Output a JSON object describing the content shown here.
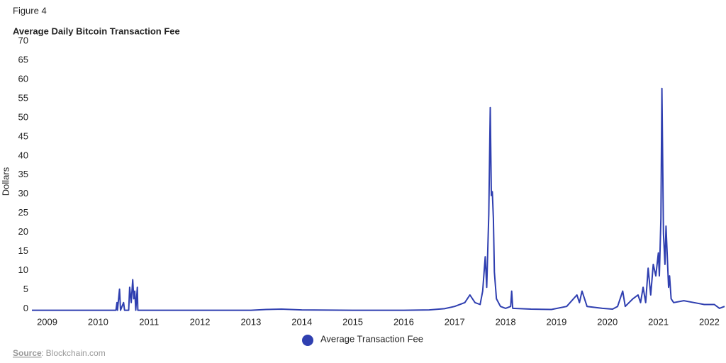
{
  "chart_data": {
    "type": "line",
    "figure_label": "Figure 4",
    "title": "Average Daily Bitcoin Transaction Fee",
    "y_label": "Dollars",
    "source_label": "Source",
    "source_text": ": Blockchain.com",
    "x": [
      2008.7,
      2010.35,
      2010.37,
      2010.38,
      2010.42,
      2010.44,
      2010.5,
      2010.52,
      2010.6,
      2010.62,
      2010.65,
      2010.68,
      2010.7,
      2010.72,
      2010.74,
      2010.77,
      2010.78,
      2013,
      2013.3,
      2013.6,
      2014,
      2015,
      2016,
      2016.5,
      2016.8,
      2017.0,
      2017.2,
      2017.3,
      2017.4,
      2017.5,
      2017.55,
      2017.6,
      2017.63,
      2017.67,
      2017.7,
      2017.72,
      2017.74,
      2017.76,
      2017.78,
      2017.82,
      2017.9,
      2018.0,
      2018.1,
      2018.12,
      2018.14,
      2018.5,
      2018.9,
      2019.2,
      2019.4,
      2019.45,
      2019.5,
      2019.6,
      2019.9,
      2020.1,
      2020.2,
      2020.3,
      2020.35,
      2020.5,
      2020.6,
      2020.65,
      2020.7,
      2020.75,
      2020.8,
      2020.85,
      2020.9,
      2020.95,
      2021.0,
      2021.02,
      2021.05,
      2021.07,
      2021.1,
      2021.13,
      2021.15,
      2021.2,
      2021.22,
      2021.25,
      2021.3,
      2021.5,
      2021.7,
      2021.9,
      2022.1,
      2022.2,
      2022.3
    ],
    "series": [
      {
        "name": "Average Transaction Fee",
        "color": "#2f3fb0",
        "values": [
          0,
          0,
          2,
          0,
          5.5,
          0,
          2,
          0,
          0,
          6,
          2,
          8,
          3,
          5,
          0,
          6,
          0,
          0,
          0.2,
          0.3,
          0.1,
          0,
          0,
          0.1,
          0.4,
          1.0,
          2,
          4,
          2,
          1.5,
          5,
          14,
          6,
          25,
          53,
          30,
          31,
          24,
          10,
          3,
          1,
          0.5,
          1,
          5,
          0.5,
          0.3,
          0.2,
          1,
          4,
          2,
          5,
          1,
          0.5,
          0.3,
          1,
          5,
          1,
          3,
          4,
          2,
          6,
          2,
          11,
          4,
          12,
          9,
          15,
          9,
          24,
          58,
          20,
          12,
          22,
          6,
          9,
          3,
          2,
          2.5,
          2,
          1.5,
          1.5,
          0.5,
          1
        ]
      }
    ],
    "xlim": [
      2008.7,
      2022.3
    ],
    "xticks": [
      2009,
      2010,
      2011,
      2012,
      2013,
      2014,
      2015,
      2016,
      2017,
      2018,
      2019,
      2020,
      2021,
      2022
    ],
    "ylim": [
      -1,
      70
    ],
    "yticks": [
      0,
      5,
      10,
      15,
      20,
      25,
      30,
      35,
      40,
      45,
      50,
      55,
      60,
      65,
      70
    ],
    "grid": false
  }
}
